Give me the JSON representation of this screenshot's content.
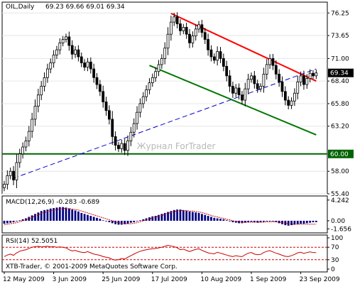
{
  "header": {
    "symbol_label": "OIL,Daily",
    "ohlc_label": "69.23 69.66 69.01 69.34",
    "macd_label": "MACD(12,26,9) -0.283 -0.689",
    "rsi_label": "RSI(14) 52.5051",
    "copyright": "XTB-Trader, © 2001-2009 MetaQuotes Software Corp.",
    "watermark": "Журнал ForTrader"
  },
  "colors": {
    "bull_candle": "#ffffff",
    "bear_candle": "#000000",
    "resistance": "#ff0000",
    "support": "#007700",
    "trendline": "#0000cc",
    "level_60": "#006400",
    "macd_hist": "#000080",
    "macd_signal": "#cc0000",
    "rsi_line": "#cc0000",
    "price_badge": "#000000"
  },
  "chart_data": [
    {
      "type": "candlestick",
      "ylim": [
        55.4,
        77.5
      ],
      "y_ticks": [
        "76.25",
        "73.65",
        "71.00",
        "68.40",
        "65.80",
        "63.20",
        "58.00",
        "55.40"
      ],
      "x_ticks": [
        "12 May 2009",
        "3 Jun 2009",
        "25 Jun 2009",
        "17 Jul 2009",
        "10 Aug 2009",
        "1 Sep 2009",
        "23 Sep 2009"
      ],
      "current_price_label": "69.34",
      "level_label": "60.00",
      "level_value": 60.0,
      "close": [
        56.5,
        57.5,
        58.0,
        57.0,
        59.0,
        60.0,
        60.8,
        61.5,
        62.6,
        64.0,
        65.5,
        66.8,
        67.8,
        68.8,
        69.8,
        70.5,
        71.4,
        72.0,
        72.8,
        73.2,
        73.5,
        72.5,
        71.5,
        72.0,
        71.2,
        70.5,
        70.0,
        70.6,
        69.8,
        68.8,
        68.0,
        67.2,
        66.0,
        65.0,
        64.0,
        62.0,
        61.0,
        60.6,
        61.2,
        60.4,
        61.5,
        62.5,
        63.5,
        64.8,
        65.8,
        66.6,
        67.4,
        68.2,
        68.8,
        69.5,
        70.3,
        71.0,
        72.2,
        73.8,
        75.2,
        75.8,
        75.0,
        74.2,
        74.6,
        73.8,
        72.8,
        73.6,
        74.4,
        74.9,
        74.0,
        73.2,
        72.0,
        71.2,
        70.8,
        71.8,
        71.0,
        70.1,
        69.0,
        67.8,
        67.0,
        67.6,
        66.8,
        66.2,
        67.5,
        68.6,
        69.0,
        68.1,
        67.5,
        67.8,
        69.2,
        70.3,
        71.0,
        70.2,
        69.2,
        68.3,
        67.2,
        66.2,
        65.6,
        66.1,
        67.0,
        68.3,
        69.0,
        68.0,
        68.7,
        69.3,
        69.0,
        69.34
      ],
      "trendlines": [
        {
          "name": "resistance",
          "points": [
            [
              54,
              76.2
            ],
            [
              101,
              68.4
            ]
          ]
        },
        {
          "name": "support",
          "points": [
            [
              47,
              70.2
            ],
            [
              101,
              62.2
            ]
          ]
        },
        {
          "name": "rising",
          "points": [
            [
              3,
              57.2
            ],
            [
              101,
              69.8
            ]
          ]
        }
      ]
    },
    {
      "type": "macd",
      "y_ticks": [
        "4.242",
        "0.00",
        "-1.656"
      ],
      "ylim": [
        -1.9,
        4.5
      ],
      "histogram": [
        -0.6,
        -0.5,
        -0.4,
        -0.3,
        -0.1,
        0.1,
        0.3,
        0.5,
        0.8,
        1.1,
        1.4,
        1.7,
        2.0,
        2.2,
        2.3,
        2.5,
        2.6,
        2.7,
        2.8,
        2.8,
        2.7,
        2.5,
        2.3,
        2.1,
        1.9,
        1.6,
        1.4,
        1.2,
        1.0,
        0.8,
        0.6,
        0.4,
        0.1,
        -0.1,
        -0.3,
        -0.5,
        -0.7,
        -0.8,
        -0.8,
        -0.7,
        -0.6,
        -0.4,
        -0.3,
        -0.1,
        0.1,
        0.3,
        0.5,
        0.7,
        0.9,
        1.0,
        1.2,
        1.4,
        1.6,
        1.8,
        2.0,
        2.2,
        2.3,
        2.3,
        2.2,
        2.0,
        1.9,
        1.8,
        1.7,
        1.6,
        1.4,
        1.2,
        1.0,
        0.8,
        0.6,
        0.5,
        0.4,
        0.3,
        0.1,
        -0.1,
        -0.3,
        -0.4,
        -0.5,
        -0.5,
        -0.4,
        -0.3,
        -0.2,
        -0.3,
        -0.4,
        -0.3,
        -0.2,
        -0.1,
        0.0,
        -0.1,
        -0.3,
        -0.5,
        -0.7,
        -0.9,
        -1.0,
        -0.9,
        -0.8,
        -0.7,
        -0.6,
        -0.6,
        -0.5,
        -0.4,
        -0.3,
        -0.28
      ],
      "signal": [
        -0.8,
        -0.7,
        -0.6,
        -0.5,
        -0.4,
        -0.2,
        0.0,
        0.2,
        0.4,
        0.7,
        1.0,
        1.2,
        1.5,
        1.7,
        1.9,
        2.1,
        2.2,
        2.3,
        2.4,
        2.5,
        2.5,
        2.5,
        2.4,
        2.3,
        2.2,
        2.0,
        1.8,
        1.6,
        1.4,
        1.2,
        1.0,
        0.8,
        0.6,
        0.4,
        0.2,
        0.0,
        -0.2,
        -0.4,
        -0.5,
        -0.6,
        -0.6,
        -0.6,
        -0.5,
        -0.4,
        -0.2,
        0.0,
        0.2,
        0.4,
        0.6,
        0.8,
        0.9,
        1.1,
        1.3,
        1.5,
        1.7,
        1.9,
        2.0,
        2.1,
        2.1,
        2.1,
        2.0,
        2.0,
        1.9,
        1.8,
        1.7,
        1.5,
        1.3,
        1.1,
        0.9,
        0.8,
        0.6,
        0.5,
        0.3,
        0.2,
        0.0,
        -0.1,
        -0.2,
        -0.3,
        -0.3,
        -0.3,
        -0.3,
        -0.3,
        -0.3,
        -0.3,
        -0.3,
        -0.2,
        -0.2,
        -0.2,
        -0.2,
        -0.3,
        -0.4,
        -0.5,
        -0.6,
        -0.7,
        -0.7,
        -0.7,
        -0.7,
        -0.7,
        -0.7,
        -0.7,
        -0.7,
        -0.69
      ]
    },
    {
      "type": "rsi",
      "y_ticks": [
        "100",
        "70",
        "30",
        "0"
      ],
      "ylim": [
        0,
        100
      ],
      "levels": [
        70,
        30
      ],
      "values": [
        40,
        45,
        48,
        44,
        52,
        57,
        60,
        62,
        66,
        70,
        72,
        73,
        71,
        72,
        73,
        71,
        72,
        70,
        71,
        70,
        68,
        62,
        58,
        60,
        56,
        54,
        53,
        56,
        52,
        48,
        46,
        44,
        40,
        38,
        36,
        31,
        29,
        30,
        34,
        32,
        38,
        43,
        48,
        53,
        57,
        60,
        62,
        64,
        65,
        66,
        68,
        70,
        73,
        76,
        74,
        72,
        68,
        62,
        64,
        60,
        56,
        60,
        63,
        65,
        60,
        56,
        52,
        50,
        49,
        54,
        51,
        48,
        45,
        42,
        40,
        43,
        41,
        40,
        46,
        51,
        53,
        48,
        46,
        47,
        53,
        57,
        59,
        55,
        51,
        48,
        44,
        41,
        40,
        43,
        47,
        52,
        54,
        50,
        53,
        55,
        53,
        52.5
      ]
    }
  ]
}
